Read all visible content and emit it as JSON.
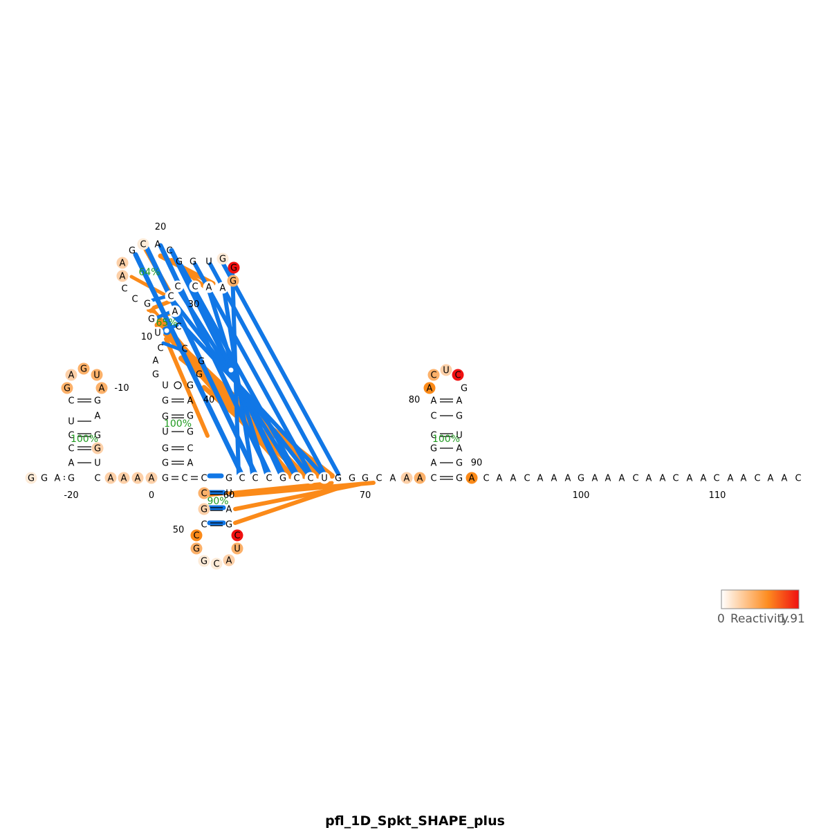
{
  "title": "pfl_1D_Spkt_SHAPE_plus",
  "legend": {
    "min_label": "0",
    "label": "Reactivity",
    "max_label": "1.91",
    "colors": [
      "#ffffff",
      "#fd8c20",
      "#f01010"
    ]
  },
  "colors": {
    "pair_line": "#000000",
    "helix_orange": "#fb8a19",
    "helix_blue": "#1177e6",
    "percent_text": "#1f9a1f"
  },
  "sequence_letters": "GGAGCAAAAGCCGCCCGCCUGGGCAAACGACAACAAAGAAACAACAACAACAAC",
  "nucleotides_labels": {
    "position_labels": [
      "20",
      "-10",
      "10",
      "30",
      "40",
      "80",
      "90",
      "-20",
      "0",
      "60",
      "70",
      "100",
      "110",
      "50"
    ]
  },
  "percent_labels": [
    "64%",
    "65%",
    "100%",
    "100%",
    "100%",
    "90%"
  ]
}
